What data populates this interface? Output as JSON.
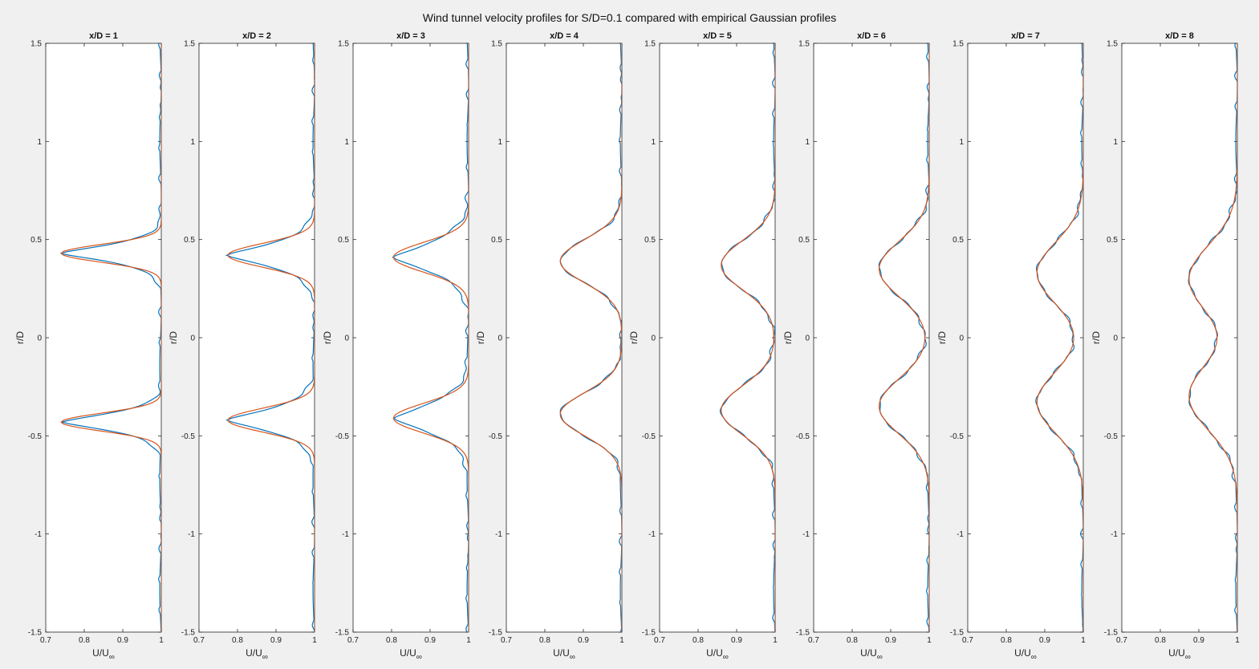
{
  "figure": {
    "title": "Wind tunnel velocity profiles for S/D=0.1 compared with empirical Gaussian profiles"
  },
  "colors": {
    "measured": "#0072BD",
    "gaussian": "#D95319",
    "background": "#f0f0f0",
    "axes_background": "#ffffff"
  },
  "chart_data": {
    "type": "line",
    "orientation": "x = U/U∞, y = r/D",
    "xlabel": "U/U",
    "xlabel_subscript": "∞",
    "ylabel": "r/D",
    "xlim": [
      0.7,
      1.0
    ],
    "ylim": [
      -1.5,
      1.5
    ],
    "xticks": [
      "0.7",
      "0.8",
      "0.9",
      "1"
    ],
    "yticks": [
      "-1.5",
      "-1",
      "-0.5",
      "0",
      "0.5",
      "1",
      "1.5"
    ],
    "grid": false,
    "legend": "none",
    "series_note": "Measured (blue) and empirical Gaussian (red) curves per panel; deficit parameters estimated from the figure",
    "panels": [
      {
        "title": "x/D = 1",
        "centers": [
          0.43,
          -0.43
        ],
        "min": 0.74,
        "sigma": 0.045,
        "shape": "peaked"
      },
      {
        "title": "x/D = 2",
        "centers": [
          0.42,
          -0.42
        ],
        "min": 0.775,
        "sigma": 0.06,
        "shape": "peaked"
      },
      {
        "title": "x/D = 3",
        "centers": [
          0.41,
          -0.41
        ],
        "min": 0.805,
        "sigma": 0.075,
        "shape": "peaked"
      },
      {
        "title": "x/D = 4",
        "centers": [
          0.39,
          -0.39
        ],
        "min": 0.84,
        "sigma": 0.11,
        "shape": "gauss"
      },
      {
        "title": "x/D = 5",
        "centers": [
          0.37,
          -0.37
        ],
        "min": 0.86,
        "sigma": 0.125,
        "shape": "gauss"
      },
      {
        "title": "x/D = 6",
        "centers": [
          0.35,
          -0.35
        ],
        "min": 0.87,
        "sigma": 0.14,
        "shape": "gauss"
      },
      {
        "title": "x/D = 7",
        "centers": [
          0.33,
          -0.33
        ],
        "min": 0.88,
        "sigma": 0.155,
        "shape": "gauss"
      },
      {
        "title": "x/D = 8",
        "centers": [
          0.3,
          -0.3
        ],
        "min": 0.875,
        "sigma": 0.17,
        "shape": "gauss"
      }
    ]
  }
}
